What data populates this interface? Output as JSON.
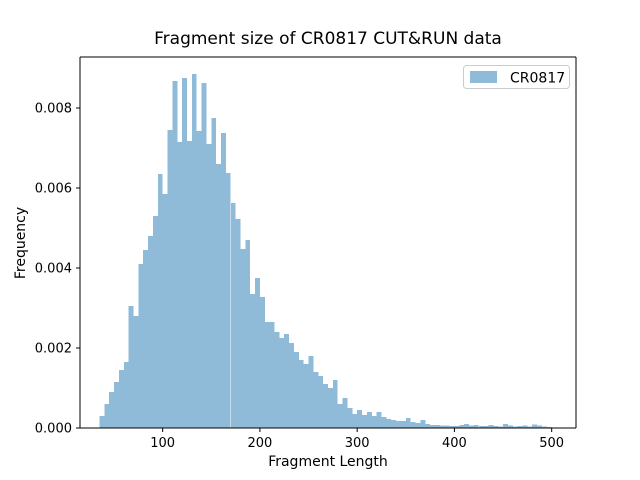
{
  "figure": {
    "background": "#ffffff",
    "spine_color": "#000000"
  },
  "chart_data": {
    "type": "bar",
    "subtype": "histogram",
    "title": "Fragment size of CR0817 CUT&RUN data",
    "xlabel": "Fragment Length",
    "ylabel": "Frequency",
    "legend": {
      "entries": [
        {
          "label": "CR0817",
          "swatch_color": "#8fbbd9"
        }
      ],
      "position": "upper right",
      "frame_color": "#cccccc",
      "frame_fill": "#ffffff"
    },
    "bar_color": "#8fbbd9",
    "grid": false,
    "bin_start": 35,
    "bin_width": 5,
    "values": [
      0.0003,
      0.0006,
      0.0009,
      0.00115,
      0.00145,
      0.00165,
      0.00305,
      0.0028,
      0.0041,
      0.00445,
      0.0048,
      0.0053,
      0.00635,
      0.00585,
      0.00745,
      0.00868,
      0.00715,
      0.00875,
      0.00718,
      0.00885,
      0.00742,
      0.00862,
      0.0071,
      0.00775,
      0.0066,
      0.00738,
      0.00638,
      0.00563,
      0.00522,
      0.00448,
      0.0047,
      0.00335,
      0.00375,
      0.00328,
      0.00265,
      0.00265,
      0.0024,
      0.00225,
      0.00235,
      0.00213,
      0.0019,
      0.0017,
      0.0016,
      0.0018,
      0.0014,
      0.0013,
      0.0011,
      0.001,
      0.0012,
      0.0006,
      0.00075,
      0.0005,
      0.00035,
      0.00045,
      0.00033,
      0.0004,
      0.0003,
      0.0004,
      0.00028,
      0.00023,
      0.0002,
      0.00018,
      0.00018,
      0.00025,
      0.00015,
      0.00012,
      0.0002,
      0.0001,
      8e-05,
      8e-05,
      6e-05,
      6e-05,
      5e-05,
      5e-05,
      8e-05,
      0.0001,
      6e-05,
      8e-05,
      5e-05,
      5e-05,
      8e-05,
      5e-05,
      4e-05,
      0.0001,
      6e-05,
      4e-05,
      5e-05,
      6e-05,
      4e-05,
      9e-05,
      6e-05,
      4e-05,
      3e-05
    ],
    "xticks": [
      100,
      200,
      300,
      400,
      500
    ],
    "yticks": [
      0.0,
      0.002,
      0.004,
      0.006,
      0.008
    ],
    "ytick_decimals": 3,
    "xlim": [
      15,
      525
    ],
    "ylim": [
      0,
      0.009275
    ],
    "legend_label": "CR0817"
  }
}
